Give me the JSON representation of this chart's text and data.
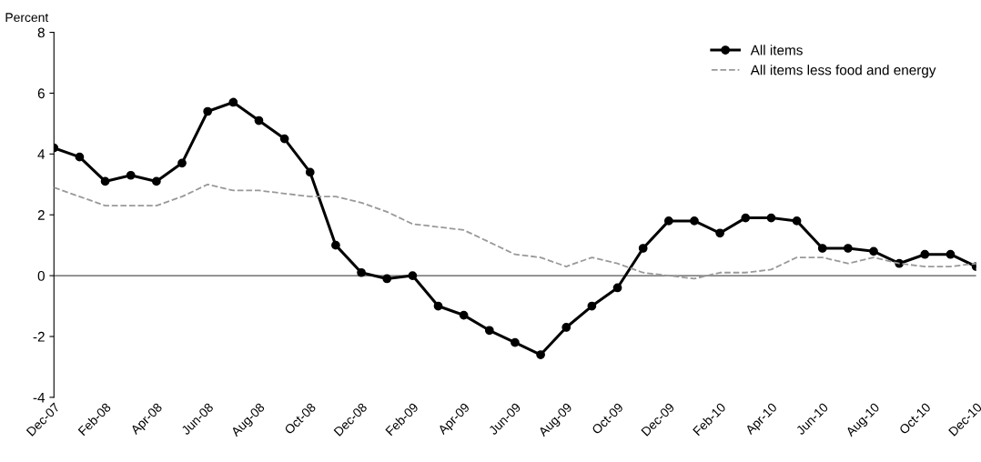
{
  "chart_data": {
    "type": "line",
    "ylabel": "Percent",
    "categories": [
      "Dec-07",
      null,
      "Feb-08",
      null,
      "Apr-08",
      null,
      "Jun-08",
      null,
      "Aug-08",
      null,
      "Oct-08",
      null,
      "Dec-08",
      null,
      "Feb-09",
      null,
      "Apr-09",
      null,
      "Jun-09",
      null,
      "Aug-09",
      null,
      "Oct-09",
      null,
      "Dec-09",
      null,
      "Feb-10",
      null,
      "Apr-10",
      null,
      "Jun-10",
      null,
      "Aug-10",
      null,
      "Oct-10",
      null,
      "Dec-10"
    ],
    "series": [
      {
        "name": "All items",
        "color": "#000000",
        "marker": "circle",
        "line_style": "solid",
        "values": [
          4.2,
          3.9,
          3.1,
          3.3,
          3.1,
          3.7,
          5.4,
          5.7,
          5.1,
          4.5,
          3.4,
          1.0,
          0.1,
          -0.1,
          0.0,
          -1.0,
          -1.3,
          -1.8,
          -2.2,
          -2.6,
          -1.7,
          -1.0,
          -0.4,
          0.9,
          1.8,
          1.8,
          1.4,
          1.9,
          1.9,
          1.8,
          0.9,
          0.9,
          0.8,
          0.4,
          0.7,
          0.7,
          0.3
        ]
      },
      {
        "name": "All items less food and energy",
        "color": "#999999",
        "marker": "none",
        "line_style": "dashed",
        "values": [
          2.9,
          2.6,
          2.3,
          2.3,
          2.3,
          2.6,
          3.0,
          2.8,
          2.8,
          2.7,
          2.6,
          2.6,
          2.4,
          2.1,
          1.7,
          1.6,
          1.5,
          1.1,
          0.7,
          0.6,
          0.3,
          0.6,
          0.4,
          0.1,
          0.0,
          -0.1,
          0.1,
          0.1,
          0.2,
          0.6,
          0.6,
          0.4,
          0.6,
          0.4,
          0.3,
          0.3,
          0.4
        ]
      }
    ],
    "ylim": [
      -4,
      8
    ],
    "yticks": [
      -4,
      -2,
      0,
      2,
      4,
      6,
      8
    ],
    "ref_lines": [
      {
        "axis": "y",
        "value": 0,
        "color": "#555555",
        "line_style": "solid"
      }
    ],
    "grid": false,
    "legend": "top right"
  }
}
